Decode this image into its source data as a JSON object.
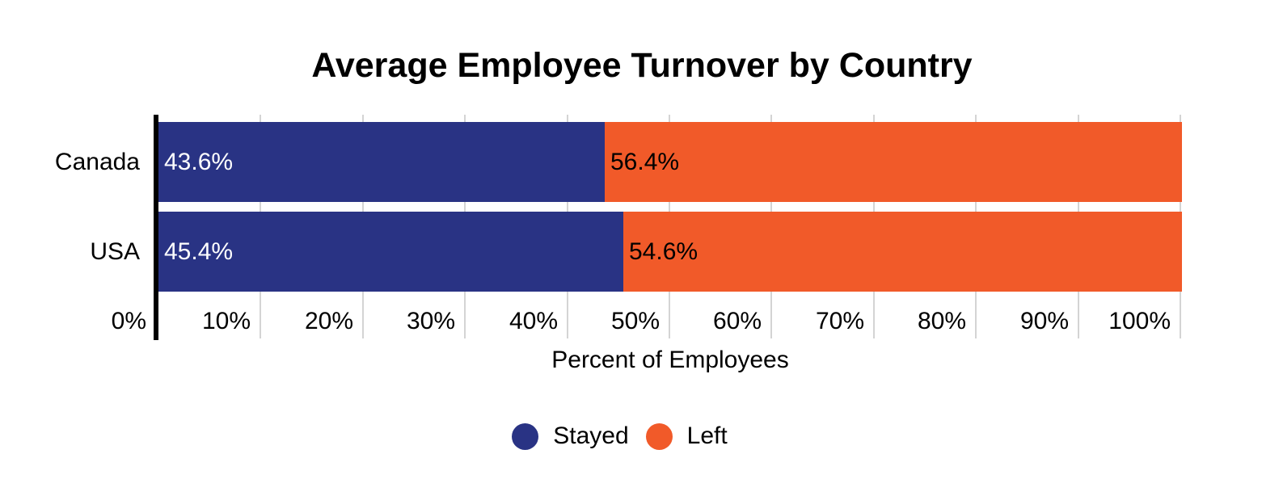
{
  "chart_data": {
    "type": "bar",
    "orientation": "horizontal",
    "stacked": true,
    "title": "Average Employee Turnover by Country",
    "xlabel": "Percent of Employees",
    "categories": [
      "Canada",
      "USA"
    ],
    "series": [
      {
        "name": "Stayed",
        "color": "#293384",
        "label_color": "#ffffff",
        "values": [
          43.6,
          45.4
        ],
        "value_labels": [
          "43.6%",
          "45.4%"
        ]
      },
      {
        "name": "Left",
        "color": "#F15A29",
        "label_color": "#000000",
        "values": [
          56.4,
          54.6
        ],
        "value_labels": [
          "56.4%",
          "54.6%"
        ]
      }
    ],
    "x_ticks": [
      "0%",
      "10%",
      "20%",
      "30%",
      "40%",
      "50%",
      "60%",
      "70%",
      "80%",
      "90%",
      "100%"
    ],
    "xlim": [
      0,
      100
    ],
    "grid": true,
    "gridline_color": "#D4D4D4",
    "axis_line_color": "#000000",
    "background": "#ffffff",
    "legend_position": "bottom",
    "legend_marker": "circle-icon"
  }
}
